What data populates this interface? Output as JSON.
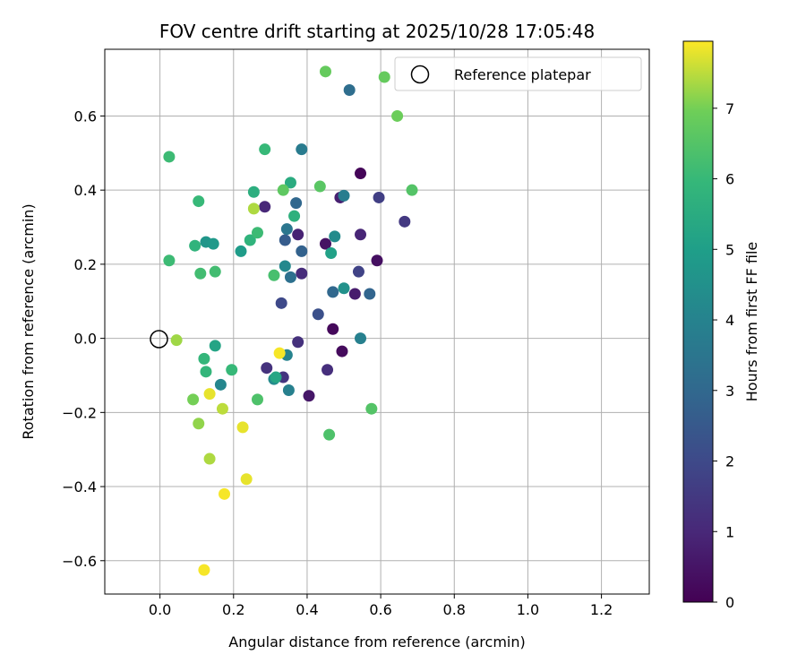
{
  "chart_data": {
    "type": "scatter",
    "title": "FOV centre drift starting at 2025/10/28 17:05:48",
    "xlabel": "Angular distance from reference (arcmin)",
    "ylabel": "Rotation from reference (arcmin)",
    "xlim": [
      -0.15,
      1.33
    ],
    "ylim": [
      -0.69,
      0.78
    ],
    "xticks": [
      0.0,
      0.2,
      0.4,
      0.6,
      0.8,
      1.0,
      1.2
    ],
    "xtick_labels": [
      "0.0",
      "0.2",
      "0.4",
      "0.6",
      "0.8",
      "1.0",
      "1.2"
    ],
    "yticks": [
      -0.6,
      -0.4,
      -0.2,
      0.0,
      0.2,
      0.4,
      0.6
    ],
    "ytick_labels": [
      "−0.6",
      "−0.4",
      "−0.2",
      "0.0",
      "0.2",
      "0.4",
      "0.6"
    ],
    "grid": true,
    "legend": {
      "position": "top-right",
      "entries": [
        "Reference platepar"
      ]
    },
    "reference_point": {
      "x": 0.0,
      "y": 0.0
    },
    "colorbar": {
      "label": "Hours from first FF file",
      "range": [
        0,
        7.95
      ],
      "ticks": [
        0,
        1,
        2,
        3,
        4,
        5,
        6,
        7
      ],
      "tick_labels": [
        "0",
        "1",
        "2",
        "3",
        "4",
        "5",
        "6",
        "7"
      ],
      "colormap": "viridis"
    },
    "points": [
      {
        "x": 0.545,
        "y": 0.445,
        "c": 0.1
      },
      {
        "x": 0.47,
        "y": 0.025,
        "c": 0.2
      },
      {
        "x": 0.495,
        "y": -0.035,
        "c": 0.25
      },
      {
        "x": 0.59,
        "y": 0.21,
        "c": 0.35
      },
      {
        "x": 0.45,
        "y": 0.255,
        "c": 0.45
      },
      {
        "x": 0.405,
        "y": -0.155,
        "c": 0.55
      },
      {
        "x": 0.53,
        "y": 0.12,
        "c": 0.7
      },
      {
        "x": 0.49,
        "y": 0.38,
        "c": 0.8
      },
      {
        "x": 0.375,
        "y": 0.28,
        "c": 0.85
      },
      {
        "x": 0.545,
        "y": 0.28,
        "c": 0.95
      },
      {
        "x": 0.285,
        "y": 0.355,
        "c": 1.0
      },
      {
        "x": 0.385,
        "y": 0.175,
        "c": 1.1
      },
      {
        "x": 0.455,
        "y": -0.085,
        "c": 1.2
      },
      {
        "x": 0.375,
        "y": -0.01,
        "c": 1.25
      },
      {
        "x": 0.29,
        "y": -0.08,
        "c": 1.3
      },
      {
        "x": 0.335,
        "y": -0.105,
        "c": 1.4
      },
      {
        "x": 0.665,
        "y": 0.315,
        "c": 1.5
      },
      {
        "x": 0.595,
        "y": 0.38,
        "c": 1.7
      },
      {
        "x": 0.54,
        "y": 0.18,
        "c": 1.8
      },
      {
        "x": 0.33,
        "y": 0.095,
        "c": 2.0
      },
      {
        "x": 0.43,
        "y": 0.065,
        "c": 2.2
      },
      {
        "x": 0.34,
        "y": 0.265,
        "c": 2.6
      },
      {
        "x": 0.385,
        "y": 0.235,
        "c": 2.8
      },
      {
        "x": 0.57,
        "y": 0.12,
        "c": 2.9
      },
      {
        "x": 0.47,
        "y": 0.125,
        "c": 3.0
      },
      {
        "x": 0.37,
        "y": 0.365,
        "c": 3.0
      },
      {
        "x": 0.515,
        "y": 0.67,
        "c": 3.2
      },
      {
        "x": 0.355,
        "y": 0.165,
        "c": 3.3
      },
      {
        "x": 0.345,
        "y": 0.295,
        "c": 3.5
      },
      {
        "x": 0.385,
        "y": 0.51,
        "c": 3.7
      },
      {
        "x": 0.5,
        "y": 0.385,
        "c": 3.8
      },
      {
        "x": 0.545,
        "y": 0.0,
        "c": 3.9
      },
      {
        "x": 0.35,
        "y": -0.14,
        "c": 3.9
      },
      {
        "x": 0.345,
        "y": -0.045,
        "c": 4.0
      },
      {
        "x": 0.165,
        "y": -0.125,
        "c": 4.1
      },
      {
        "x": 0.34,
        "y": 0.195,
        "c": 4.2
      },
      {
        "x": 0.475,
        "y": 0.275,
        "c": 4.3
      },
      {
        "x": 0.31,
        "y": -0.11,
        "c": 4.3
      },
      {
        "x": 0.5,
        "y": 0.135,
        "c": 4.5
      },
      {
        "x": 0.125,
        "y": 0.26,
        "c": 4.7
      },
      {
        "x": 0.145,
        "y": 0.255,
        "c": 4.8
      },
      {
        "x": 0.22,
        "y": 0.235,
        "c": 4.9
      },
      {
        "x": 0.465,
        "y": 0.23,
        "c": 5.1
      },
      {
        "x": 0.15,
        "y": -0.02,
        "c": 5.2
      },
      {
        "x": 0.315,
        "y": -0.105,
        "c": 5.3
      },
      {
        "x": 0.355,
        "y": 0.42,
        "c": 5.5
      },
      {
        "x": 0.255,
        "y": 0.395,
        "c": 5.6
      },
      {
        "x": 0.365,
        "y": 0.33,
        "c": 5.7
      },
      {
        "x": 0.245,
        "y": 0.265,
        "c": 5.8
      },
      {
        "x": 0.095,
        "y": 0.25,
        "c": 5.8
      },
      {
        "x": 0.125,
        "y": -0.09,
        "c": 5.9
      },
      {
        "x": 0.12,
        "y": -0.055,
        "c": 5.9
      },
      {
        "x": 0.195,
        "y": -0.085,
        "c": 6.0
      },
      {
        "x": 0.105,
        "y": 0.37,
        "c": 6.0
      },
      {
        "x": 0.285,
        "y": 0.51,
        "c": 6.0
      },
      {
        "x": 0.025,
        "y": 0.49,
        "c": 6.1
      },
      {
        "x": 0.025,
        "y": 0.21,
        "c": 6.1
      },
      {
        "x": 0.265,
        "y": 0.285,
        "c": 6.1
      },
      {
        "x": 0.11,
        "y": 0.175,
        "c": 6.2
      },
      {
        "x": 0.15,
        "y": 0.18,
        "c": 6.2
      },
      {
        "x": 0.31,
        "y": 0.17,
        "c": 6.3
      },
      {
        "x": 0.265,
        "y": -0.165,
        "c": 6.4
      },
      {
        "x": 0.46,
        "y": -0.26,
        "c": 6.4
      },
      {
        "x": 0.575,
        "y": -0.19,
        "c": 6.5
      },
      {
        "x": 0.685,
        "y": 0.4,
        "c": 6.5
      },
      {
        "x": 0.435,
        "y": 0.41,
        "c": 6.6
      },
      {
        "x": 0.335,
        "y": 0.4,
        "c": 6.7
      },
      {
        "x": 0.45,
        "y": 0.72,
        "c": 6.8
      },
      {
        "x": 0.61,
        "y": 0.705,
        "c": 6.8
      },
      {
        "x": 0.645,
        "y": 0.6,
        "c": 6.9
      },
      {
        "x": 0.09,
        "y": -0.165,
        "c": 7.0
      },
      {
        "x": 0.105,
        "y": -0.23,
        "c": 7.2
      },
      {
        "x": 0.045,
        "y": -0.005,
        "c": 7.3
      },
      {
        "x": 0.255,
        "y": 0.35,
        "c": 7.4
      },
      {
        "x": 0.135,
        "y": -0.325,
        "c": 7.4
      },
      {
        "x": 0.17,
        "y": -0.19,
        "c": 7.5
      },
      {
        "x": 0.135,
        "y": -0.15,
        "c": 7.8
      },
      {
        "x": 0.225,
        "y": -0.24,
        "c": 7.8
      },
      {
        "x": 0.235,
        "y": -0.38,
        "c": 7.8
      },
      {
        "x": 0.175,
        "y": -0.42,
        "c": 7.9
      },
      {
        "x": 0.12,
        "y": -0.625,
        "c": 7.9
      },
      {
        "x": 0.325,
        "y": -0.04,
        "c": 7.9
      }
    ]
  }
}
